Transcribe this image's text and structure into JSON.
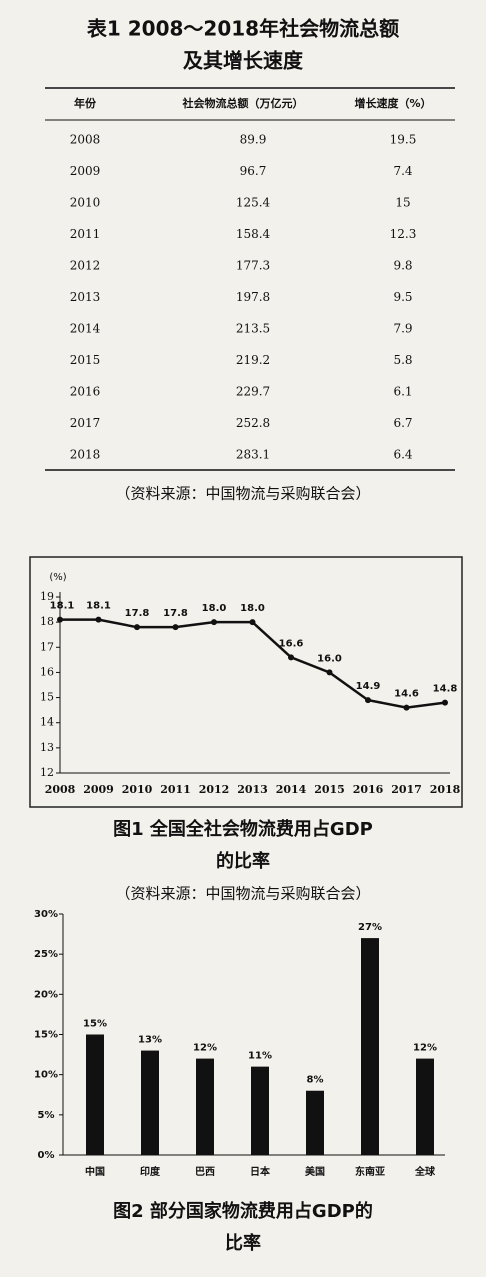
{
  "table": {
    "title": [
      "表1  2008～2018年社会物流总额",
      "及其增长速度"
    ],
    "header": [
      "年份",
      "社会物流总额（万亿元）",
      "增长速度（%）"
    ],
    "rows": [
      [
        "2008",
        "89.9",
        "19.5"
      ],
      [
        "2009",
        "96.7",
        "7.4"
      ],
      [
        "2010",
        "125.4",
        "15"
      ],
      [
        "2011",
        "158.4",
        "12.3"
      ],
      [
        "2012",
        "177.3",
        "9.8"
      ],
      [
        "2013",
        "197.8",
        "9.5"
      ],
      [
        "2014",
        "213.5",
        "7.9"
      ],
      [
        "2015",
        "219.2",
        "5.8"
      ],
      [
        "2016",
        "229.7",
        "6.1"
      ],
      [
        "2017",
        "252.8",
        "6.7"
      ],
      [
        "2018",
        "283.1",
        "6.4"
      ]
    ],
    "source": "（资料来源：中国物流与采购联合会）"
  },
  "chart_data": [
    {
      "type": "line",
      "ylabel": "(%)",
      "categories": [
        "2008",
        "2009",
        "2010",
        "2011",
        "2012",
        "2013",
        "2014",
        "2015",
        "2016",
        "2017",
        "2018"
      ],
      "values": [
        18.1,
        18.1,
        17.8,
        17.8,
        18.0,
        18.0,
        16.6,
        16.0,
        14.9,
        14.6,
        14.8
      ],
      "value_labels": [
        "18.1",
        "18.1",
        "17.8",
        "17.8",
        "18.0",
        "18.0",
        "16.6",
        "16.0",
        "14.9",
        "14.6",
        "14.8"
      ],
      "color": "#111111",
      "ylim": [
        12,
        19
      ],
      "yticks": [
        12,
        13,
        14,
        15,
        16,
        17,
        18,
        19
      ],
      "caption": [
        "图1  全国全社会物流费用占GDP",
        "的比率"
      ],
      "source": "（资料来源：中国物流与采购联合会）"
    },
    {
      "type": "bar",
      "categories": [
        "中国",
        "印度",
        "巴西",
        "日本",
        "美国",
        "东南亚",
        "全球"
      ],
      "values": [
        15,
        13,
        12,
        11,
        8,
        27,
        12
      ],
      "value_labels": [
        "15%",
        "13%",
        "12%",
        "11%",
        "8%",
        "27%",
        "12%"
      ],
      "color": "#111111",
      "ylim": [
        0,
        30
      ],
      "yticks": [
        {
          "value": 0,
          "label": "0%"
        },
        {
          "value": 5,
          "label": "5%"
        },
        {
          "value": 10,
          "label": "10%"
        },
        {
          "value": 15,
          "label": "15%"
        },
        {
          "value": 20,
          "label": "20%"
        },
        {
          "value": 25,
          "label": "25%"
        },
        {
          "value": 30,
          "label": "30%"
        }
      ],
      "caption": [
        "图2  部分国家物流费用占GDP的",
        "比率"
      ]
    }
  ]
}
